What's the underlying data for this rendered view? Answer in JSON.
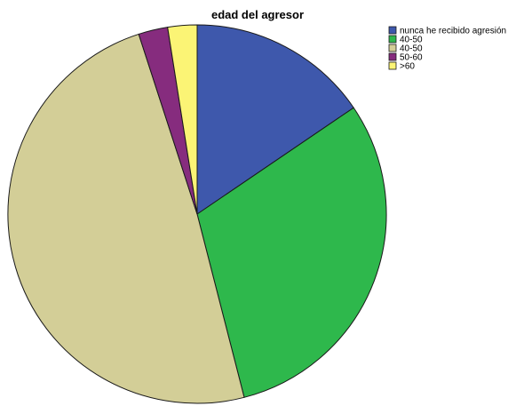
{
  "chart_data": {
    "type": "pie",
    "title": "edad del agresor",
    "legend_position": "top-right",
    "slices": [
      {
        "label": "nunca he recibido agresión",
        "value": 15.5,
        "color": "#3e58ac"
      },
      {
        "label": "40-50",
        "value": 30.5,
        "color": "#2eb84c"
      },
      {
        "label": "40-50",
        "value": 49.0,
        "color": "#d3ce97"
      },
      {
        "label": "50-60",
        "value": 2.5,
        "color": "#862c7e"
      },
      {
        "label": ">60",
        "value": 2.5,
        "color": "#fbf475"
      }
    ]
  }
}
